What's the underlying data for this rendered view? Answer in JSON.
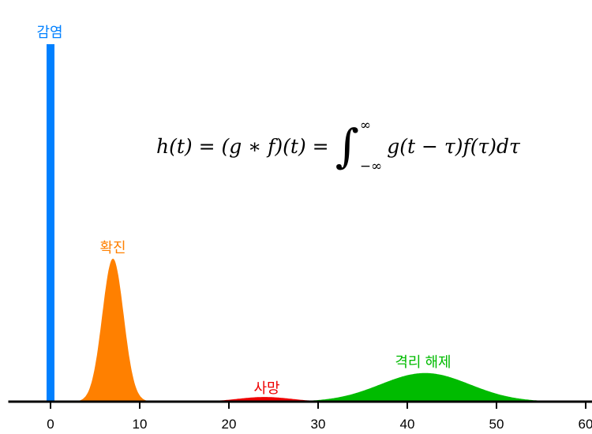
{
  "chart_data": {
    "type": "area",
    "title": "",
    "xlabel": "",
    "ylabel": "",
    "xlim": [
      -5,
      60
    ],
    "ylim": [
      0,
      1
    ],
    "x_ticks": [
      "0",
      "10",
      "20",
      "30",
      "40",
      "50",
      "60"
    ],
    "grid": false,
    "formula": "h(t) = (g * f)(t) = ∫_{-∞}^{∞} g(t − τ) f(τ) dτ",
    "formula_parts": {
      "lhs": "h(t) = (g ∗ f)(t) =",
      "upper": "∞",
      "lower": "−∞",
      "rhs": "g(t − τ)f(τ)dτ"
    },
    "series": [
      {
        "name": "감염",
        "shape": "impulse",
        "x": 0,
        "height": 1.0,
        "color": "#0080ff"
      },
      {
        "name": "확진",
        "shape": "gaussian",
        "mean": 7,
        "sd": 1.2,
        "height": 0.4,
        "color": "#ff8000"
      },
      {
        "name": "사망",
        "shape": "gaussian",
        "mean": 24,
        "sd": 3,
        "height": 0.013,
        "color": "#ee0000"
      },
      {
        "name": "격리 해제",
        "shape": "gaussian",
        "mean": 42,
        "sd": 5,
        "height": 0.08,
        "color": "#00bb00"
      }
    ]
  }
}
